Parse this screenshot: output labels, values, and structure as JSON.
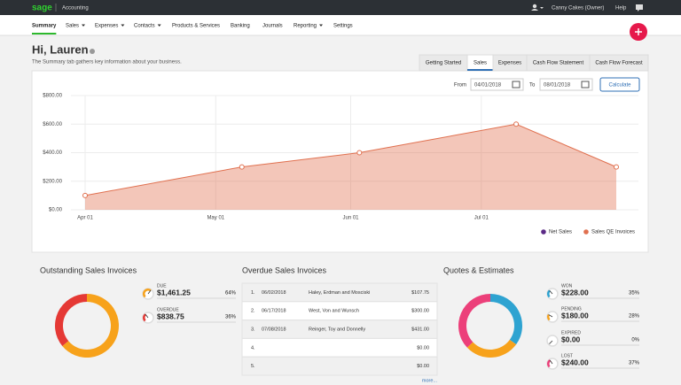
{
  "topbar": {
    "logo": "sage",
    "app": "Accounting",
    "user": "Canny Cakes (Owner)",
    "help": "Help"
  },
  "nav": [
    {
      "label": "Summary",
      "active": true
    },
    {
      "label": "Sales",
      "menu": true
    },
    {
      "label": "Expenses",
      "menu": true
    },
    {
      "label": "Contacts",
      "menu": true
    },
    {
      "label": "Products & Services"
    },
    {
      "label": "Banking"
    },
    {
      "label": "Journals"
    },
    {
      "label": "Reporting",
      "menu": true
    },
    {
      "label": "Settings"
    }
  ],
  "greeting": {
    "title": "Hi, Lauren",
    "subtitle": "The Summary tab gathers key information about your business."
  },
  "tabs": [
    {
      "label": "Getting Started"
    },
    {
      "label": "Sales",
      "active": true
    },
    {
      "label": "Expenses"
    },
    {
      "label": "Cash Flow Statement"
    },
    {
      "label": "Cash Flow Forecast"
    }
  ],
  "filters": {
    "from_label": "From",
    "from": "04/01/2018",
    "to_label": "To",
    "to": "08/01/2018",
    "button": "Calculate"
  },
  "chart_data": {
    "type": "area",
    "x": [
      0,
      36,
      63,
      99,
      122
    ],
    "xlim": [
      0,
      122
    ],
    "xticks": [
      {
        "value": 0,
        "label": "Apr 01"
      },
      {
        "value": 30,
        "label": "May 01"
      },
      {
        "value": 61,
        "label": "Jun 01"
      },
      {
        "value": 91,
        "label": "Jul 01"
      }
    ],
    "ylim": [
      0,
      800
    ],
    "yticks": [
      {
        "value": 0,
        "label": "$0.00"
      },
      {
        "value": 200,
        "label": "$200.00"
      },
      {
        "value": 400,
        "label": "$400.00"
      },
      {
        "value": 600,
        "label": "$600.00"
      },
      {
        "value": 800,
        "label": "$800.00"
      }
    ],
    "grid": true,
    "legend": "bottom-right",
    "series": [
      {
        "name": "Net Sales",
        "color": "#5b2a86",
        "values": [
          null,
          null,
          null,
          null,
          null
        ]
      },
      {
        "name": "Sales QE Invoices",
        "color": "#e0704f",
        "values": [
          100,
          300,
          400,
          600,
          300
        ]
      }
    ]
  },
  "outstanding": {
    "title": "Outstanding Sales Invoices",
    "items": [
      {
        "label": "DUE",
        "amount": "$1,461.25",
        "percent": 64,
        "percent_label": "64%",
        "color": "#f7a21b"
      },
      {
        "label": "OVERDUE",
        "amount": "$838.75",
        "percent": 36,
        "percent_label": "36%",
        "color": "#e53935"
      }
    ]
  },
  "overdue": {
    "title": "Overdue Sales Invoices",
    "rows": [
      {
        "n": "1.",
        "date": "06/02/2018",
        "customer": "Haley, Erdman and Mosciski",
        "amount": "$107.75"
      },
      {
        "n": "2.",
        "date": "06/17/2018",
        "customer": "West, Von and Wunsch",
        "amount": "$300.00"
      },
      {
        "n": "3.",
        "date": "07/08/2018",
        "customer": "Reinger, Toy and Donnelly",
        "amount": "$431.00"
      },
      {
        "n": "4.",
        "amount": "$0.00"
      },
      {
        "n": "5.",
        "amount": "$0.00"
      }
    ],
    "more": "more..."
  },
  "quotes": {
    "title": "Quotes & Estimates",
    "items": [
      {
        "label": "WON",
        "amount": "$228.00",
        "percent": 35,
        "percent_label": "35%",
        "color": "#2ea3d1"
      },
      {
        "label": "PENDING",
        "amount": "$180.00",
        "percent": 28,
        "percent_label": "28%",
        "color": "#f7a21b"
      },
      {
        "label": "EXPIRED",
        "amount": "$0.00",
        "percent": 0,
        "percent_label": "0%",
        "color": "#555555"
      },
      {
        "label": "LOST",
        "amount": "$240.00",
        "percent": 37,
        "percent_label": "37%",
        "color": "#ec407a"
      }
    ]
  }
}
